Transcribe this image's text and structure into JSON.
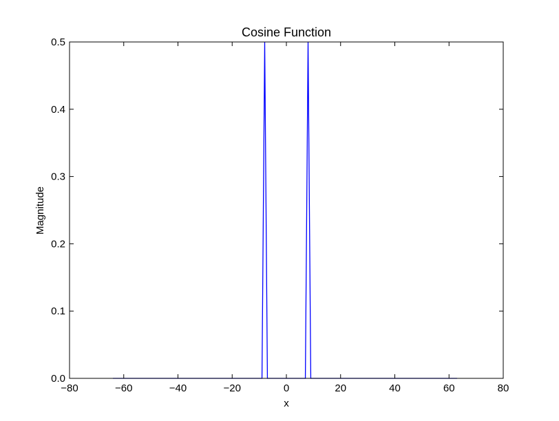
{
  "chart_data": {
    "type": "line",
    "title": "Cosine Function",
    "xlabel": "x",
    "ylabel": "Magnitude",
    "xlim": [
      -80,
      80
    ],
    "ylim": [
      0.0,
      0.5
    ],
    "grid": false,
    "x_ticks": [
      -80,
      -60,
      -40,
      -20,
      0,
      20,
      40,
      60,
      80
    ],
    "x_tick_labels": [
      "−80",
      "−60",
      "−40",
      "−20",
      "0",
      "20",
      "40",
      "60",
      "80"
    ],
    "y_ticks": [
      0.0,
      0.1,
      0.2,
      0.3,
      0.4,
      0.5
    ],
    "y_tick_labels": [
      "0.0",
      "0.1",
      "0.2",
      "0.3",
      "0.4",
      "0.5"
    ],
    "series": [
      {
        "color": "#0000ff",
        "x": [
          -64,
          -10,
          -9,
          -8,
          -7,
          7,
          8,
          9,
          63
        ],
        "y": [
          0,
          0,
          0,
          0.5,
          0,
          0,
          0.5,
          0,
          0
        ]
      }
    ]
  }
}
